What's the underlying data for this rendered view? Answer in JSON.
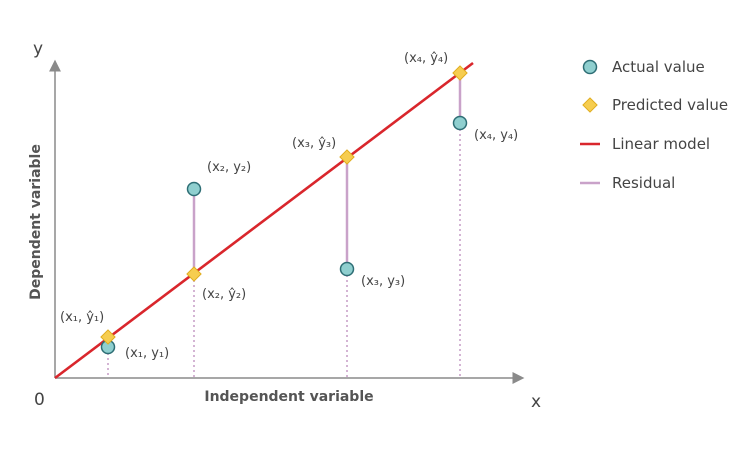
{
  "axes": {
    "x_letter": "x",
    "y_letter": "y",
    "origin_label": "0",
    "x_title": "Independent variable",
    "y_title": "Dependent variable"
  },
  "points": [
    {
      "actual_label": "(x₁, y₁)",
      "predicted_label": "(x₁, ŷ₁)"
    },
    {
      "actual_label": "(x₂, y₂)",
      "predicted_label": "(x₂, ŷ₂)"
    },
    {
      "actual_label": "(x₃, y₃)",
      "predicted_label": "(x₃, ŷ₃)"
    },
    {
      "actual_label": "(x₄, y₄)",
      "predicted_label": "(x₄, ŷ₄)"
    }
  ],
  "legend": {
    "actual": "Actual value",
    "predicted": "Predicted value",
    "model": "Linear model",
    "residual": "Residual"
  },
  "colors": {
    "axis": "#8a8a8a",
    "model_line": "#d9262c",
    "residual": "#c9a2c9",
    "dotted_guide": "#c9a2c9",
    "actual_fill": "#8fcfcf",
    "actual_stroke": "#2e6e75",
    "predicted_fill": "#f6cd4f",
    "predicted_stroke": "#e0ad1f"
  }
}
